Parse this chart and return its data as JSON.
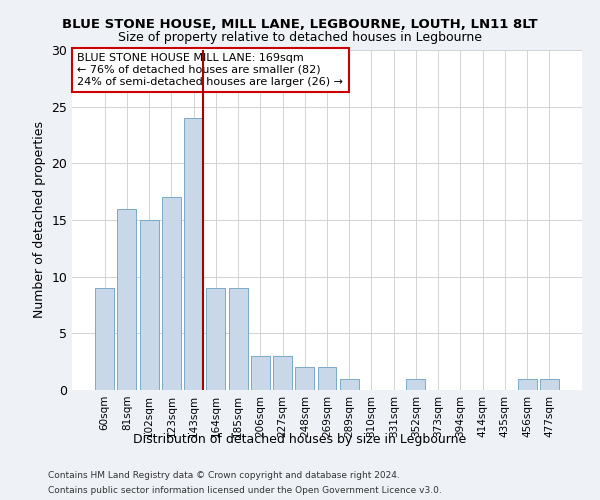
{
  "title": "BLUE STONE HOUSE, MILL LANE, LEGBOURNE, LOUTH, LN11 8LT",
  "subtitle": "Size of property relative to detached houses in Legbourne",
  "xlabel": "Distribution of detached houses by size in Legbourne",
  "ylabel": "Number of detached properties",
  "categories": [
    "60sqm",
    "81sqm",
    "102sqm",
    "123sqm",
    "143sqm",
    "164sqm",
    "185sqm",
    "206sqm",
    "227sqm",
    "248sqm",
    "269sqm",
    "289sqm",
    "310sqm",
    "331sqm",
    "352sqm",
    "373sqm",
    "394sqm",
    "414sqm",
    "435sqm",
    "456sqm",
    "477sqm"
  ],
  "values": [
    9,
    16,
    15,
    17,
    24,
    9,
    9,
    3,
    3,
    2,
    2,
    1,
    0,
    0,
    1,
    0,
    0,
    0,
    0,
    1,
    1
  ],
  "bar_color": "#c8d8e8",
  "bar_edge_color": "#7aaac8",
  "highlight_line_color": "#aa0000",
  "vline_index": 4,
  "annotation_text": "BLUE STONE HOUSE MILL LANE: 169sqm\n← 76% of detached houses are smaller (82)\n24% of semi-detached houses are larger (26) →",
  "annotation_box_color": "#ffffff",
  "annotation_box_edge": "#cc0000",
  "ylim": [
    0,
    30
  ],
  "yticks": [
    0,
    5,
    10,
    15,
    20,
    25,
    30
  ],
  "footer1": "Contains HM Land Registry data © Crown copyright and database right 2024.",
  "footer2": "Contains public sector information licensed under the Open Government Licence v3.0.",
  "bg_color": "#eef2f7",
  "plot_bg_color": "#ffffff"
}
